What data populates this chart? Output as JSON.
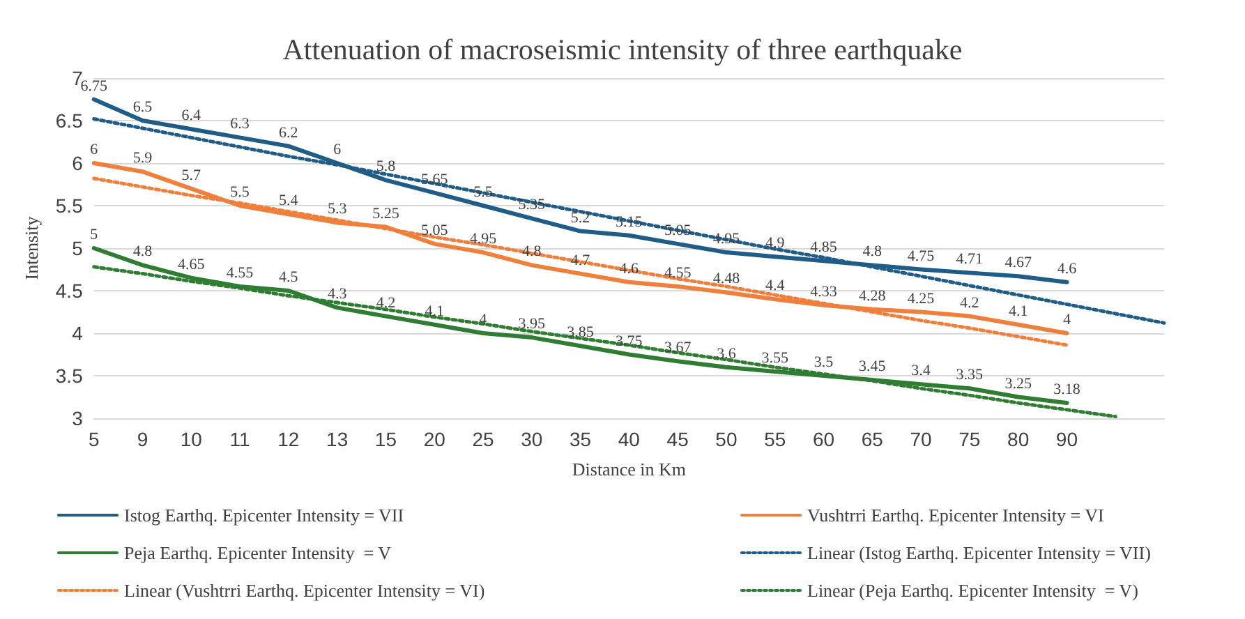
{
  "chart_data": {
    "type": "line",
    "title": "Attenuation of macroseismic intensity of three earthquake",
    "xlabel": "Distance in Km",
    "ylabel": "Intensity",
    "categories": [
      "5",
      "9",
      "10",
      "11",
      "12",
      "13",
      "15",
      "20",
      "25",
      "30",
      "35",
      "40",
      "45",
      "50",
      "55",
      "60",
      "65",
      "70",
      "75",
      "80",
      "90",
      null,
      null
    ],
    "ylim": [
      3,
      7
    ],
    "yticks": [
      3,
      3.5,
      4,
      4.5,
      5,
      5.5,
      6,
      6.5,
      7
    ],
    "grid": "y",
    "legend": "bottom",
    "marker": "none",
    "series": [
      {
        "name": "Istog Earthq. Epicenter Intensity = VII",
        "color": "#1f5c87",
        "line_style": "solid",
        "data_labels": true,
        "values": [
          6.75,
          6.5,
          6.4,
          6.3,
          6.2,
          6,
          5.8,
          5.65,
          5.5,
          5.35,
          5.2,
          5.15,
          5.05,
          4.95,
          4.9,
          4.85,
          4.8,
          4.75,
          4.71,
          4.67,
          4.6,
          null,
          null
        ]
      },
      {
        "name": "Vushtrri Earthq. Epicenter Intensity = VI",
        "color": "#f07f3c",
        "line_style": "solid",
        "data_labels": true,
        "values": [
          6,
          5.9,
          5.7,
          5.5,
          5.4,
          5.3,
          5.25,
          5.05,
          4.95,
          4.8,
          4.7,
          4.6,
          4.55,
          4.48,
          4.4,
          4.33,
          4.28,
          4.25,
          4.2,
          4.1,
          4,
          null,
          null
        ]
      },
      {
        "name": "Peja Earthq. Epicenter Intensity  = V",
        "color": "#2e7d32",
        "line_style": "solid",
        "data_labels": true,
        "values": [
          5,
          4.8,
          4.65,
          4.55,
          4.5,
          4.3,
          4.2,
          4.1,
          4,
          3.95,
          3.85,
          3.75,
          3.67,
          3.6,
          3.55,
          3.5,
          3.45,
          3.4,
          3.35,
          3.25,
          3.18,
          null,
          null
        ]
      },
      {
        "name": "Linear (Istog Earthq. Epicenter Intensity = VII)",
        "color": "#1f5c87",
        "line_style": "dotted",
        "values": [
          6.52,
          6.41,
          6.3,
          6.19,
          6.08,
          5.98,
          5.87,
          5.76,
          5.65,
          5.54,
          5.43,
          5.32,
          5.21,
          5.1,
          4.99,
          4.89,
          4.78,
          4.67,
          4.56,
          4.45,
          4.34,
          4.23,
          4.12
        ]
      },
      {
        "name": "Linear (Vushtrri Earthq. Epicenter Intensity = VI)",
        "color": "#f07f3c",
        "line_style": "dotted",
        "values": [
          5.82,
          5.72,
          5.62,
          5.53,
          5.43,
          5.33,
          5.23,
          5.13,
          5.04,
          4.94,
          4.84,
          4.74,
          4.64,
          4.55,
          4.45,
          4.35,
          4.25,
          4.15,
          4.06,
          3.96,
          3.86,
          null,
          null
        ]
      },
      {
        "name": "Linear (Peja Earthq. Epicenter Intensity  = V)",
        "color": "#2e7d32",
        "line_style": "dotted",
        "values": [
          4.78,
          4.7,
          4.61,
          4.53,
          4.44,
          4.36,
          4.28,
          4.19,
          4.11,
          4.02,
          3.94,
          3.86,
          3.77,
          3.69,
          3.6,
          3.52,
          3.44,
          3.35,
          3.27,
          3.18,
          3.1,
          3.02,
          null
        ]
      }
    ]
  }
}
